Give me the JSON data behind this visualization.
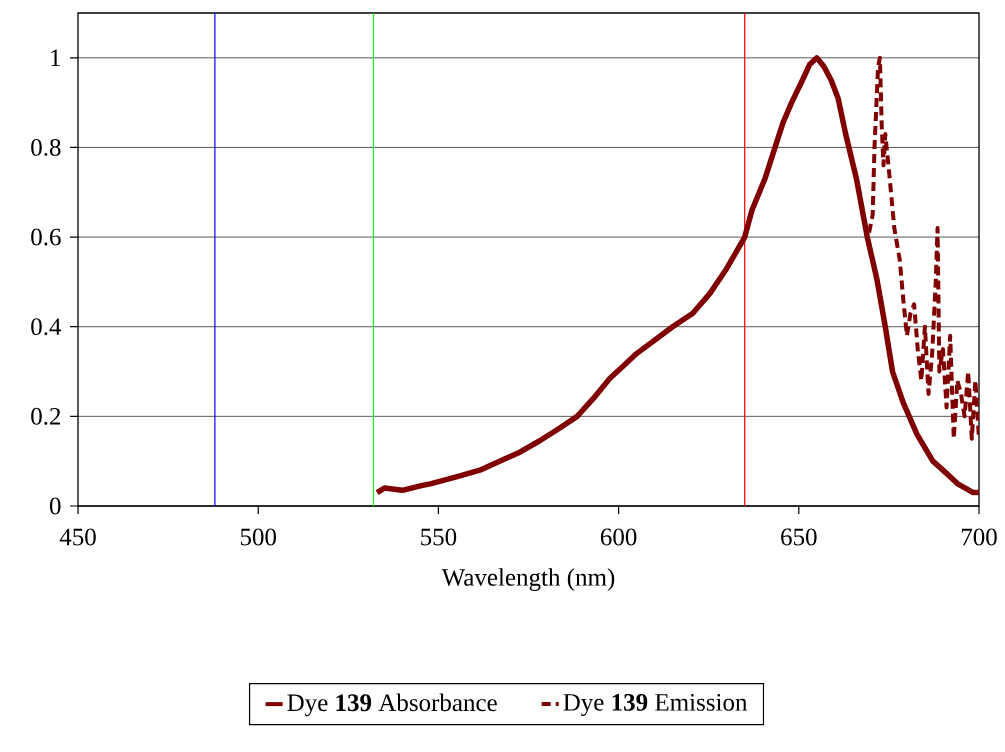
{
  "chart_data": {
    "type": "line",
    "xlabel": "Wavelength (nm)",
    "xlim": [
      450,
      700
    ],
    "ylim": [
      0,
      1.1
    ],
    "xticks": [
      450,
      500,
      550,
      600,
      650,
      700
    ],
    "yticks": [
      0,
      {
        "value": 0.2,
        "label": "0.2"
      },
      {
        "value": 0.4,
        "label": "0.4"
      },
      {
        "value": 0.6,
        "label": "0.6"
      },
      {
        "value": 0.8,
        "label": "0.8"
      },
      1
    ],
    "grid": "y",
    "legend": "bottom",
    "marker": "none",
    "ref_lines": [
      {
        "axis": "x",
        "value": 488,
        "color": "#0000ff"
      },
      {
        "axis": "x",
        "value": 532,
        "color": "#00ff00"
      },
      {
        "axis": "x",
        "value": 635,
        "color": "#ff0000"
      }
    ],
    "series": [
      {
        "name": "Dye **139** Absorbance",
        "color": "#800000",
        "line_style": "solid",
        "x": [
          533,
          535,
          540,
          545,
          548,
          555,
          561.5,
          567,
          572.6,
          578,
          583.7,
          588.5,
          593,
          597.6,
          601,
          605,
          610,
          615,
          620.6,
          625.4,
          630,
          635,
          637,
          640.6,
          643,
          645.6,
          648,
          651,
          653,
          655,
          657,
          659,
          660.9,
          663,
          666,
          669,
          671.7,
          674,
          676,
          679,
          682.8,
          687.2,
          690,
          694,
          698.4,
          700
        ],
        "values": [
          0.03,
          0.04,
          0.035,
          0.045,
          0.05,
          0.065,
          0.08,
          0.1,
          0.12,
          0.145,
          0.174,
          0.2,
          0.24,
          0.285,
          0.31,
          0.34,
          0.37,
          0.4,
          0.43,
          0.475,
          0.53,
          0.6,
          0.66,
          0.73,
          0.79,
          0.855,
          0.9,
          0.95,
          0.985,
          1.0,
          0.98,
          0.95,
          0.91,
          0.83,
          0.73,
          0.6,
          0.505,
          0.4,
          0.3,
          0.23,
          0.16,
          0.1,
          0.08,
          0.05,
          0.03,
          0.03
        ]
      },
      {
        "name": "Dye **139** Emission",
        "color": "#800000",
        "line_style": "dashed",
        "x": [
          669.5,
          670.5,
          671,
          672,
          672.5,
          673,
          673.5,
          674,
          675,
          676.5,
          678,
          679,
          680,
          681,
          682,
          683,
          684,
          685,
          686,
          687,
          688,
          688.5,
          689,
          690,
          691,
          692,
          693,
          694,
          695,
          696,
          697,
          698,
          699,
          700
        ],
        "values": [
          0.61,
          0.65,
          0.8,
          0.98,
          1.0,
          0.85,
          0.76,
          0.83,
          0.75,
          0.62,
          0.55,
          0.46,
          0.38,
          0.43,
          0.45,
          0.35,
          0.28,
          0.4,
          0.25,
          0.34,
          0.5,
          0.62,
          0.3,
          0.35,
          0.22,
          0.38,
          0.15,
          0.28,
          0.25,
          0.2,
          0.3,
          0.15,
          0.28,
          0.15
        ]
      }
    ]
  }
}
